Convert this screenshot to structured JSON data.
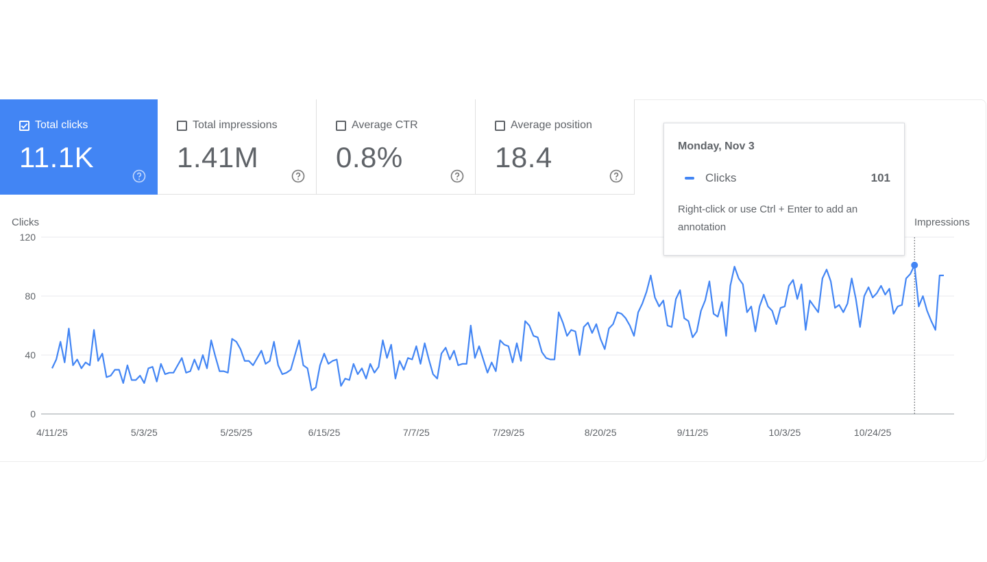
{
  "metrics": [
    {
      "label": "Total clicks",
      "value": "11.1K",
      "checked": true
    },
    {
      "label": "Total impressions",
      "value": "1.41M",
      "checked": false
    },
    {
      "label": "Average CTR",
      "value": "0.8%",
      "checked": false
    },
    {
      "label": "Average position",
      "value": "18.4",
      "checked": false
    }
  ],
  "tooltip": {
    "date": "Monday, Nov 3",
    "series": "Clicks",
    "value": "101",
    "note": "Right-click or use Ctrl + Enter to add an annotation"
  },
  "colors": {
    "accent": "#4285f4",
    "text": "#5f6368",
    "grid": "#e8eaed"
  },
  "chart_data": {
    "type": "line",
    "ylabel_left": "Clicks",
    "ylabel_right": "Impressions",
    "ylim": [
      0,
      120
    ],
    "yticks": [
      0,
      40,
      80,
      120
    ],
    "x_tick_labels": [
      "4/11/25",
      "5/3/25",
      "5/25/25",
      "6/15/25",
      "7/7/25",
      "7/29/25",
      "8/20/25",
      "9/11/25",
      "10/3/25",
      "10/24/25"
    ],
    "x_start": "4/11/25",
    "x_end": "11/9/25",
    "highlight": {
      "date": "11/3/25",
      "value": 101
    },
    "series": [
      {
        "color": "#4285f4",
        "x_dates_from": "4/11/25",
        "values": [
          31,
          37,
          49,
          35,
          58,
          33,
          37,
          31,
          35,
          33,
          57,
          36,
          41,
          25,
          26,
          30,
          30,
          21,
          33,
          23,
          23,
          26,
          21,
          31,
          32,
          22,
          34,
          27,
          28,
          28,
          33,
          38,
          28,
          29,
          37,
          30,
          40,
          31,
          50,
          39,
          29,
          29,
          28,
          51,
          49,
          44,
          36,
          36,
          33,
          38,
          43,
          34,
          36,
          49,
          33,
          27,
          28,
          30,
          40,
          50,
          33,
          31,
          16,
          18,
          33,
          41,
          34,
          36,
          37,
          19,
          24,
          23,
          34,
          27,
          31,
          24,
          34,
          28,
          32,
          50,
          38,
          47,
          24,
          36,
          30,
          38,
          37,
          46,
          34,
          48,
          37,
          27,
          24,
          41,
          45,
          37,
          43,
          33,
          34,
          34,
          60,
          38,
          46,
          37,
          28,
          35,
          29,
          50,
          47,
          46,
          35,
          48,
          36,
          63,
          60,
          53,
          52,
          42,
          38,
          37,
          37,
          69,
          62,
          53,
          57,
          56,
          40,
          59,
          62,
          55,
          61,
          51,
          44,
          58,
          61,
          69,
          68,
          65,
          60,
          53,
          69,
          75,
          83,
          94,
          79,
          73,
          77,
          60,
          59,
          78,
          84,
          65,
          63,
          52,
          56,
          70,
          77,
          90,
          68,
          66,
          76,
          53,
          87,
          100,
          92,
          88,
          69,
          73,
          56,
          73,
          81,
          73,
          70,
          61,
          72,
          73,
          87,
          91,
          78,
          88,
          57,
          77,
          73,
          69,
          92,
          98,
          90,
          72,
          74,
          69,
          75,
          92,
          78,
          59,
          80,
          86,
          79,
          82,
          87,
          81,
          85,
          68,
          73,
          74,
          92,
          95,
          101,
          73,
          80,
          70,
          63,
          57,
          94,
          94
        ]
      }
    ]
  }
}
